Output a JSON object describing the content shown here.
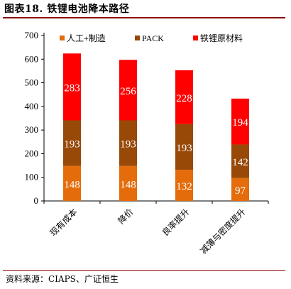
{
  "title": "图表18. 铁锂电池降本路径",
  "source": "资料来源：CIAPS、广证恒生",
  "chart_data": {
    "type": "bar",
    "stacked": true,
    "categories": [
      "现有成本",
      "降价",
      "良率提升",
      "减薄与密度提升"
    ],
    "series": [
      {
        "name": "人工+制造",
        "values": [
          148,
          148,
          132,
          97
        ],
        "color": "#e46c0a"
      },
      {
        "name": "PACK",
        "values": [
          193,
          193,
          193,
          142
        ],
        "color": "#984807"
      },
      {
        "name": "铁锂原材料",
        "values": [
          283,
          256,
          228,
          194
        ],
        "color": "#ff0000"
      }
    ],
    "ylim": [
      0,
      700
    ],
    "yticks": [
      0,
      100,
      200,
      300,
      400,
      500,
      600,
      700
    ],
    "legend": "top",
    "grid": false
  }
}
